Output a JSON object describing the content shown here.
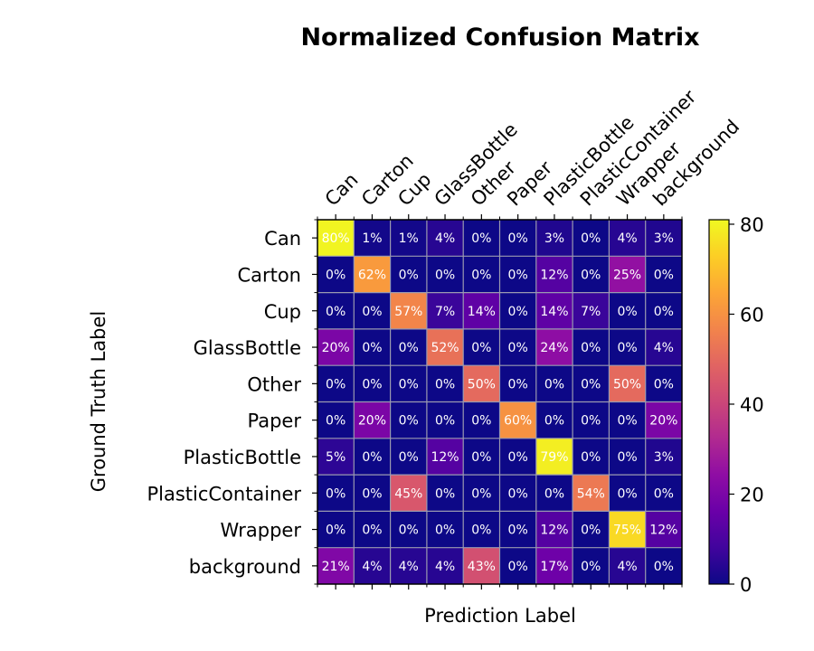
{
  "chart_data": {
    "type": "heatmap",
    "title": "Normalized Confusion Matrix",
    "xlabel": "Prediction Label",
    "ylabel": "Ground Truth Label",
    "x_categories": [
      "Can",
      "Carton",
      "Cup",
      "GlassBottle",
      "Other",
      "Paper",
      "PlasticBottle",
      "PlasticContainer",
      "Wrapper",
      "background"
    ],
    "y_categories": [
      "Can",
      "Carton",
      "Cup",
      "GlassBottle",
      "Other",
      "Paper",
      "PlasticBottle",
      "PlasticContainer",
      "Wrapper",
      "background"
    ],
    "values": [
      [
        80,
        1,
        1,
        4,
        0,
        0,
        3,
        0,
        4,
        3
      ],
      [
        0,
        62,
        0,
        0,
        0,
        0,
        12,
        0,
        25,
        0
      ],
      [
        0,
        0,
        57,
        7,
        14,
        0,
        14,
        7,
        0,
        0
      ],
      [
        20,
        0,
        0,
        52,
        0,
        0,
        24,
        0,
        0,
        4
      ],
      [
        0,
        0,
        0,
        0,
        50,
        0,
        0,
        0,
        50,
        0
      ],
      [
        0,
        20,
        0,
        0,
        0,
        60,
        0,
        0,
        0,
        20
      ],
      [
        5,
        0,
        0,
        12,
        0,
        0,
        79,
        0,
        0,
        3
      ],
      [
        0,
        0,
        45,
        0,
        0,
        0,
        0,
        54,
        0,
        0
      ],
      [
        0,
        0,
        0,
        0,
        0,
        0,
        12,
        0,
        75,
        12
      ],
      [
        21,
        4,
        4,
        4,
        43,
        0,
        17,
        0,
        4,
        0
      ]
    ],
    "cell_labels": [
      [
        "80%",
        "1%",
        "1%",
        "4%",
        "0%",
        "0%",
        "3%",
        "0%",
        "4%",
        "3%"
      ],
      [
        "0%",
        "62%",
        "0%",
        "0%",
        "0%",
        "0%",
        "12%",
        "0%",
        "25%",
        "0%"
      ],
      [
        "0%",
        "0%",
        "57%",
        "7%",
        "14%",
        "0%",
        "14%",
        "7%",
        "0%",
        "0%"
      ],
      [
        "20%",
        "0%",
        "0%",
        "52%",
        "0%",
        "0%",
        "24%",
        "0%",
        "0%",
        "4%"
      ],
      [
        "0%",
        "0%",
        "0%",
        "0%",
        "50%",
        "0%",
        "0%",
        "0%",
        "50%",
        "0%"
      ],
      [
        "0%",
        "20%",
        "0%",
        "0%",
        "0%",
        "60%",
        "0%",
        "0%",
        "0%",
        "20%"
      ],
      [
        "5%",
        "0%",
        "0%",
        "12%",
        "0%",
        "0%",
        "79%",
        "0%",
        "0%",
        "3%"
      ],
      [
        "0%",
        "0%",
        "45%",
        "0%",
        "0%",
        "0%",
        "0%",
        "54%",
        "0%",
        "0%"
      ],
      [
        "0%",
        "0%",
        "0%",
        "0%",
        "0%",
        "0%",
        "12%",
        "0%",
        "75%",
        "12%"
      ],
      [
        "21%",
        "4%",
        "4%",
        "4%",
        "43%",
        "0%",
        "17%",
        "0%",
        "4%",
        "0%"
      ]
    ],
    "colormap": "plasma",
    "value_range": [
      0,
      81
    ],
    "colorbar_ticks": [
      0,
      20,
      40,
      60,
      80
    ],
    "colorbar_tick_labels": [
      "0",
      "20",
      "40",
      "60",
      "80"
    ],
    "grid": true,
    "x_tick_position": "top"
  }
}
